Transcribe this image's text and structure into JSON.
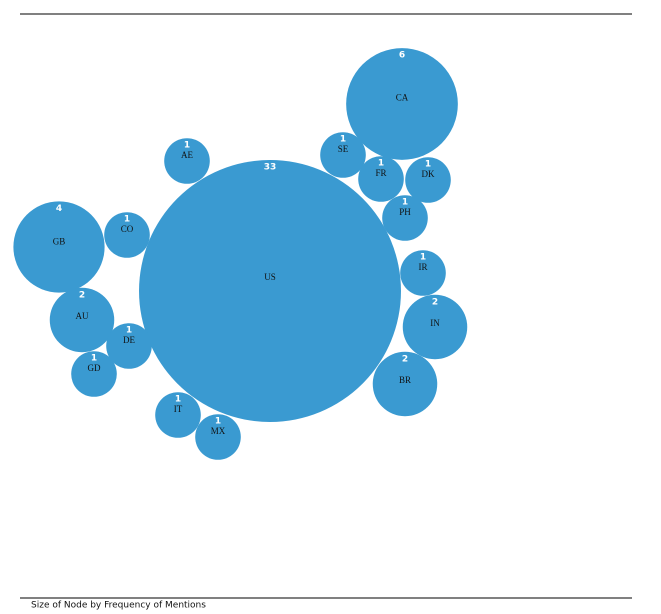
{
  "chart_data": {
    "type": "bubble",
    "caption": "Size of Node by Frequency of Mentions",
    "color": "#3a9ad1",
    "categories": [
      "US",
      "CA",
      "GB",
      "AU",
      "AE",
      "CO",
      "DE",
      "GD",
      "IT",
      "MX",
      "SE",
      "FR",
      "DK",
      "PH",
      "IR",
      "IN",
      "BR"
    ],
    "values": [
      33,
      6,
      4,
      2,
      1,
      1,
      1,
      1,
      1,
      1,
      1,
      1,
      1,
      1,
      1,
      2,
      2
    ]
  }
}
